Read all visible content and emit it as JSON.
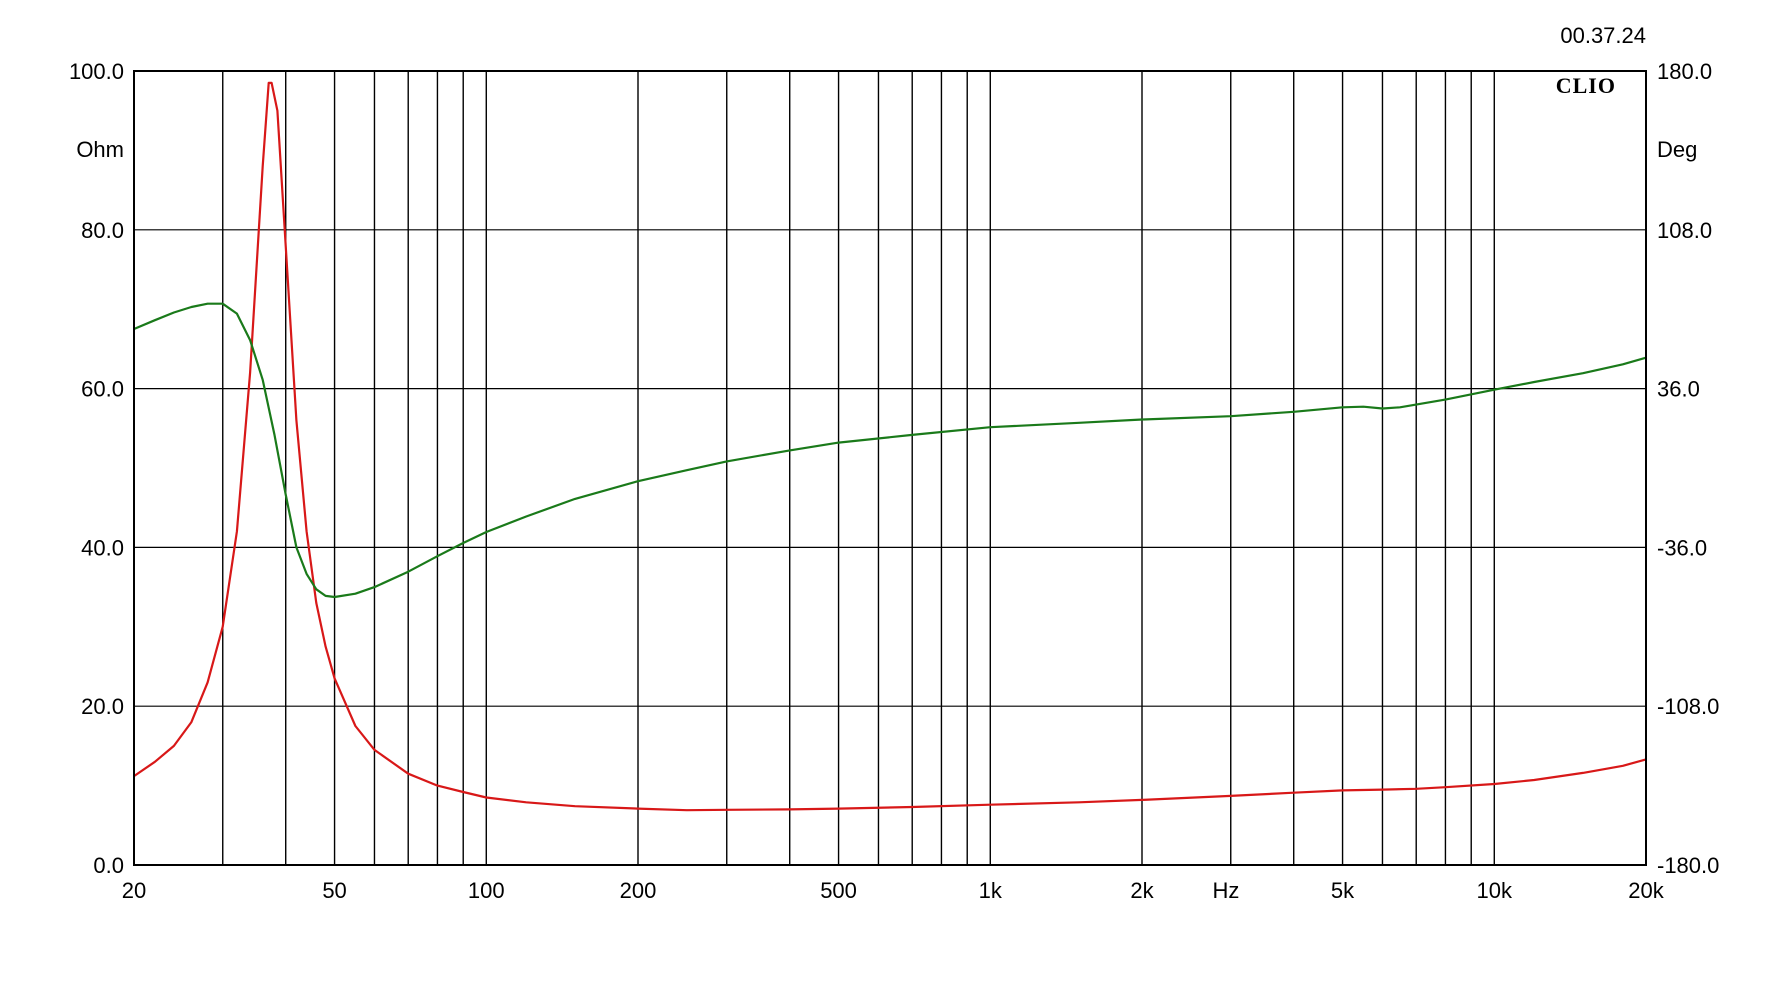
{
  "chart_data": {
    "type": "line",
    "timestamp": "00.37.24",
    "logo": "CLIO",
    "xscale": "log",
    "xlim": [
      20,
      20000
    ],
    "xlabel": "Hz",
    "x_major_ticks": [
      {
        "value": 20,
        "label": "20"
      },
      {
        "value": 50,
        "label": "50"
      },
      {
        "value": 100,
        "label": "100"
      },
      {
        "value": 200,
        "label": "200"
      },
      {
        "value": 500,
        "label": "500"
      },
      {
        "value": 1000,
        "label": "1k"
      },
      {
        "value": 2000,
        "label": "2k"
      },
      {
        "value": 5000,
        "label": "5k"
      },
      {
        "value": 10000,
        "label": "10k"
      },
      {
        "value": 20000,
        "label": "20k"
      }
    ],
    "x_gridlines": [
      30,
      40,
      50,
      60,
      70,
      80,
      90,
      100,
      200,
      300,
      400,
      500,
      600,
      700,
      800,
      900,
      1000,
      2000,
      3000,
      4000,
      5000,
      6000,
      7000,
      8000,
      9000,
      10000,
      20000
    ],
    "y_left": {
      "label": "Ohm",
      "lim": [
        0,
        100
      ],
      "ticks": [
        {
          "value": 0,
          "label": "0.0"
        },
        {
          "value": 20,
          "label": "20.0"
        },
        {
          "value": 40,
          "label": "40.0"
        },
        {
          "value": 60,
          "label": "60.0"
        },
        {
          "value": 80,
          "label": "80.0"
        },
        {
          "value": 100,
          "label": "100.0"
        }
      ]
    },
    "y_right": {
      "label": "Deg",
      "lim": [
        -180,
        180
      ],
      "ticks": [
        {
          "value": -180,
          "label": "-180.0"
        },
        {
          "value": -108,
          "label": "-108.0"
        },
        {
          "value": -36,
          "label": "-36.0"
        },
        {
          "value": 36,
          "label": "36.0"
        },
        {
          "value": 108,
          "label": "108.0"
        },
        {
          "value": 180,
          "label": "180.0"
        }
      ]
    },
    "grid": true,
    "series": [
      {
        "axis": "left",
        "color": "#d81818",
        "points": [
          [
            20,
            11.2
          ],
          [
            22,
            13
          ],
          [
            24,
            15
          ],
          [
            26,
            18
          ],
          [
            28,
            23
          ],
          [
            30,
            30
          ],
          [
            32,
            42
          ],
          [
            34,
            62
          ],
          [
            36,
            88
          ],
          [
            37,
            98.5
          ],
          [
            37.5,
            98.5
          ],
          [
            38.5,
            95
          ],
          [
            40,
            78
          ],
          [
            42,
            56
          ],
          [
            44,
            42
          ],
          [
            46,
            33
          ],
          [
            48,
            27.5
          ],
          [
            50,
            23.5
          ],
          [
            55,
            17.5
          ],
          [
            60,
            14.5
          ],
          [
            70,
            11.5
          ],
          [
            80,
            10
          ],
          [
            90,
            9.2
          ],
          [
            100,
            8.5
          ],
          [
            120,
            7.9
          ],
          [
            150,
            7.4
          ],
          [
            200,
            7.1
          ],
          [
            250,
            6.9
          ],
          [
            300,
            6.95
          ],
          [
            400,
            7.0
          ],
          [
            500,
            7.1
          ],
          [
            700,
            7.3
          ],
          [
            1000,
            7.6
          ],
          [
            1500,
            7.9
          ],
          [
            2000,
            8.2
          ],
          [
            3000,
            8.7
          ],
          [
            4000,
            9.1
          ],
          [
            5000,
            9.4
          ],
          [
            6000,
            9.5
          ],
          [
            7000,
            9.6
          ],
          [
            8000,
            9.8
          ],
          [
            10000,
            10.2
          ],
          [
            12000,
            10.7
          ],
          [
            15000,
            11.6
          ],
          [
            18000,
            12.5
          ],
          [
            20000,
            13.3
          ]
        ]
      },
      {
        "axis": "right",
        "color": "#1a7a1a",
        "points": [
          [
            20,
            63
          ],
          [
            22,
            67
          ],
          [
            24,
            70.5
          ],
          [
            26,
            73
          ],
          [
            28,
            74.5
          ],
          [
            30,
            74.5
          ],
          [
            32,
            70
          ],
          [
            34,
            58
          ],
          [
            36,
            40
          ],
          [
            38,
            15
          ],
          [
            40,
            -12
          ],
          [
            42,
            -36
          ],
          [
            44,
            -48
          ],
          [
            46,
            -55
          ],
          [
            48,
            -58
          ],
          [
            50,
            -58.5
          ],
          [
            55,
            -57
          ],
          [
            60,
            -54
          ],
          [
            70,
            -47
          ],
          [
            80,
            -40
          ],
          [
            90,
            -34
          ],
          [
            100,
            -29
          ],
          [
            120,
            -22
          ],
          [
            150,
            -14
          ],
          [
            200,
            -6
          ],
          [
            250,
            -1
          ],
          [
            300,
            3
          ],
          [
            400,
            8
          ],
          [
            500,
            11.5
          ],
          [
            700,
            15
          ],
          [
            1000,
            18.5
          ],
          [
            1500,
            20.5
          ],
          [
            2000,
            22
          ],
          [
            3000,
            23.5
          ],
          [
            4000,
            25.5
          ],
          [
            5000,
            27.5
          ],
          [
            5500,
            27.8
          ],
          [
            6000,
            27
          ],
          [
            6500,
            27.5
          ],
          [
            8000,
            31
          ],
          [
            10000,
            35.5
          ],
          [
            12000,
            39
          ],
          [
            15000,
            43
          ],
          [
            18000,
            47
          ],
          [
            20000,
            50
          ]
        ]
      }
    ]
  }
}
